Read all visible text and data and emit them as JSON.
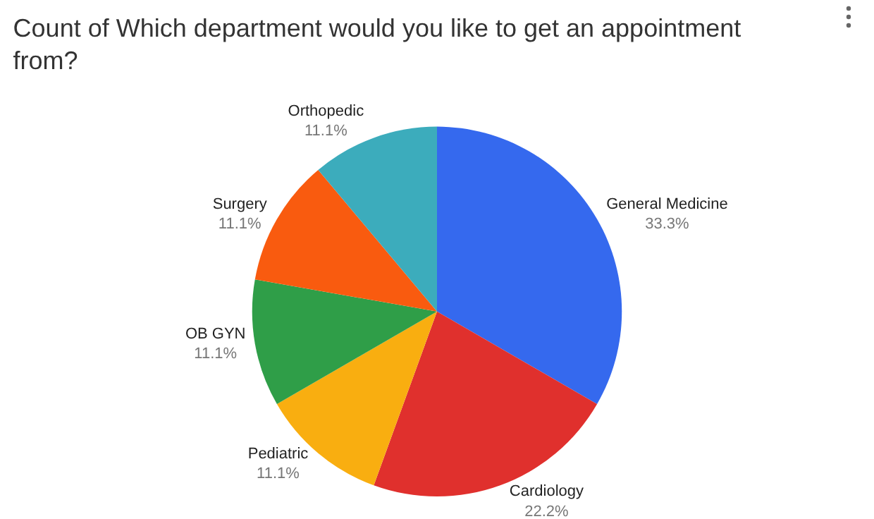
{
  "chart_data": {
    "type": "pie",
    "title": "Count of Which department would you like to get an appointment from?",
    "categories": [
      "General Medicine",
      "Cardiology",
      "Pediatric",
      "OB GYN",
      "Surgery",
      "Orthopedic"
    ],
    "values": [
      33.3,
      22.2,
      11.1,
      11.1,
      11.1,
      11.1
    ],
    "colors": [
      "#3569ee",
      "#e0302d",
      "#f9ae10",
      "#2f9e48",
      "#f95b0f",
      "#3cacbc"
    ],
    "value_labels": [
      "33.3%",
      "22.2%",
      "11.1%",
      "11.1%",
      "11.1%",
      "11.1%"
    ],
    "legend": false
  }
}
